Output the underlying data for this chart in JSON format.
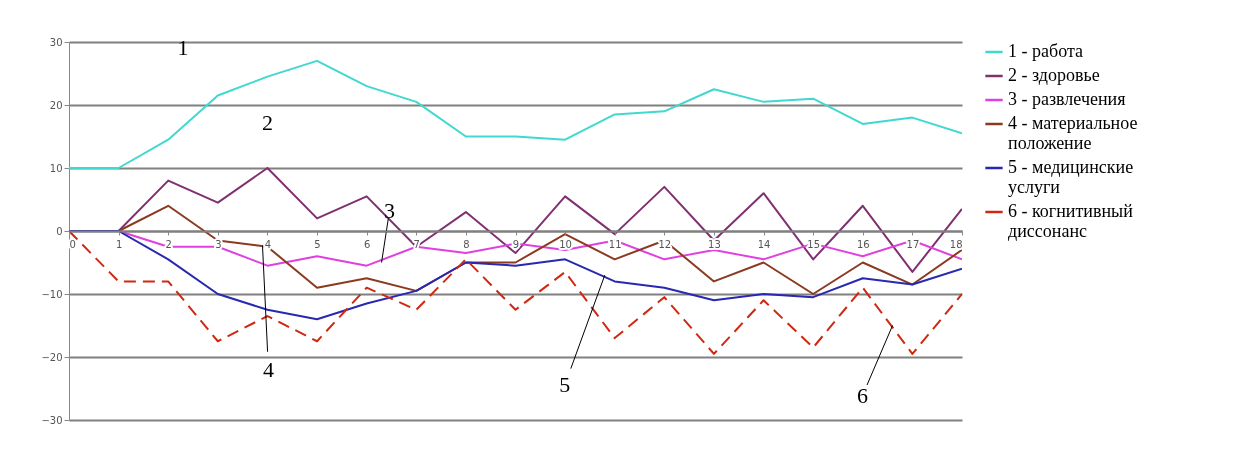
{
  "chart_data": {
    "type": "line",
    "x": [
      0,
      1,
      2,
      3,
      4,
      5,
      6,
      7,
      8,
      9,
      10,
      11,
      12,
      13,
      14,
      15,
      16,
      17,
      18
    ],
    "xlim": [
      0,
      18
    ],
    "xticks": [
      0,
      1,
      2,
      3,
      4,
      5,
      6,
      7,
      8,
      9,
      10,
      11,
      12,
      13,
      14,
      15,
      16,
      17,
      18
    ],
    "ylim": [
      -30,
      30
    ],
    "yticks": [
      -30,
      -20,
      -10,
      0,
      10,
      20,
      30
    ],
    "grid": "y",
    "legend": "right",
    "marker": "none",
    "series": [
      {
        "name": "1 - работа",
        "color": "#40d8d0",
        "line_style": "solid",
        "values": [
          10,
          10,
          14.5,
          21.5,
          24.5,
          27,
          23,
          20.5,
          15,
          15,
          14.5,
          18.5,
          19,
          22.5,
          20.5,
          21,
          17,
          18,
          15.5
        ]
      },
      {
        "name": "2 - здоровье",
        "color": "#803070",
        "line_style": "solid",
        "values": [
          0,
          0,
          8,
          4.5,
          10,
          2,
          5.5,
          -2.5,
          3,
          -3.5,
          5.5,
          -0.5,
          7,
          -1.5,
          6,
          -4.5,
          4,
          -6.5,
          3.5
        ]
      },
      {
        "name": "3 - развлечения",
        "color": "#e040e0",
        "line_style": "solid",
        "values": [
          0,
          0,
          -2.5,
          -2.5,
          -5.5,
          -4,
          -5.5,
          -2.5,
          -3.5,
          -2,
          -3,
          -1.5,
          -4.5,
          -3,
          -4.5,
          -2,
          -4,
          -1.5,
          -4.5
        ]
      },
      {
        "name": "4 - материальное положение",
        "color": "#8b3a20",
        "line_style": "solid",
        "values": [
          0,
          0,
          4,
          -1.5,
          -2.5,
          -9,
          -7.5,
          -9.5,
          -5,
          -5,
          -0.5,
          -4.5,
          -1.5,
          -8,
          -5,
          -10,
          -5,
          -8.5,
          -3
        ]
      },
      {
        "name": "5 - медицинские услуги",
        "color": "#2828b0",
        "line_style": "solid",
        "values": [
          0,
          0,
          -4.5,
          -10,
          -12.5,
          -14,
          -11.5,
          -9.5,
          -5,
          -5.5,
          -4.5,
          -8,
          -9,
          -11,
          -10,
          -10.5,
          -7.5,
          -8.5,
          -6
        ]
      },
      {
        "name": "6 - когнитивный диссонанс",
        "color": "#d02810",
        "line_style": "dashed",
        "values": [
          0,
          -8,
          -8,
          -17.5,
          -13.5,
          -17.5,
          -9,
          -12.5,
          -4.5,
          -12.5,
          -6.5,
          -17,
          -10.5,
          -19.5,
          -11,
          -18.5,
          -9,
          -19.5,
          -10
        ]
      }
    ],
    "annotations": [
      {
        "text": "1",
        "x": 2.5,
        "y": 18
      },
      {
        "text": "2",
        "x": 4,
        "y": 10
      },
      {
        "text": "3",
        "x": 6.3,
        "y": -5
      },
      {
        "text": "4",
        "x": 3.9,
        "y": -2.3
      },
      {
        "text": "5",
        "x": 10.8,
        "y": -7
      },
      {
        "text": "6",
        "x": 16.6,
        "y": -15
      }
    ]
  }
}
